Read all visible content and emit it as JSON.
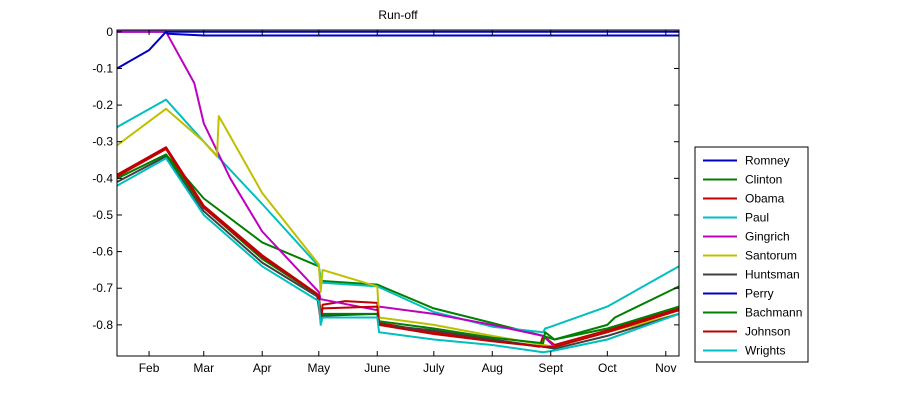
{
  "chart_data": {
    "type": "line",
    "title": "Run-off",
    "xlabel": "",
    "ylabel": "",
    "x_domain": [
      "2012-01-15",
      "2012-11-08"
    ],
    "ylim": [
      -0.885,
      0.005
    ],
    "x_ticks": [
      {
        "date": "2012-02-01",
        "label": "Feb"
      },
      {
        "date": "2012-03-01",
        "label": "Mar"
      },
      {
        "date": "2012-04-01",
        "label": "Apr"
      },
      {
        "date": "2012-05-01",
        "label": "May"
      },
      {
        "date": "2012-06-01",
        "label": "June"
      },
      {
        "date": "2012-07-01",
        "label": "July"
      },
      {
        "date": "2012-08-01",
        "label": "Aug"
      },
      {
        "date": "2012-09-01",
        "label": "Sept"
      },
      {
        "date": "2012-10-01",
        "label": "Oct"
      },
      {
        "date": "2012-11-01",
        "label": "Nov"
      }
    ],
    "y_ticks": [
      {
        "value": 0,
        "label": "0"
      },
      {
        "value": -0.1,
        "label": "-0.1"
      },
      {
        "value": -0.2,
        "label": "-0.2"
      },
      {
        "value": -0.3,
        "label": "-0.3"
      },
      {
        "value": -0.4,
        "label": "-0.4"
      },
      {
        "value": -0.5,
        "label": "-0.5"
      },
      {
        "value": -0.6,
        "label": "-0.6"
      },
      {
        "value": -0.7,
        "label": "-0.7"
      },
      {
        "value": -0.8,
        "label": "-0.8"
      }
    ],
    "grid": false,
    "legend_position": "outside-right",
    "series": [
      {
        "name": "Romney",
        "color": "#0000bf",
        "points": [
          [
            "2012-01-15",
            0
          ],
          [
            "2012-11-08",
            0
          ]
        ]
      },
      {
        "name": "Clinton",
        "color": "#007f00",
        "points": [
          [
            "2012-01-15",
            -0.4
          ],
          [
            "2012-02-10",
            -0.335
          ],
          [
            "2012-03-01",
            -0.455
          ],
          [
            "2012-04-01",
            -0.575
          ],
          [
            "2012-05-01",
            -0.64
          ],
          [
            "2012-05-02",
            -0.68
          ],
          [
            "2012-06-01",
            -0.69
          ],
          [
            "2012-07-01",
            -0.755
          ],
          [
            "2012-08-01",
            -0.795
          ],
          [
            "2012-08-28",
            -0.83
          ],
          [
            "2012-09-03",
            -0.84
          ],
          [
            "2012-10-01",
            -0.8
          ],
          [
            "2012-10-05",
            -0.78
          ],
          [
            "2012-11-08",
            -0.695
          ]
        ]
      },
      {
        "name": "Obama",
        "color": "#bf0000",
        "points": [
          [
            "2012-01-15",
            -0.39
          ],
          [
            "2012-02-10",
            -0.315
          ],
          [
            "2012-03-01",
            -0.475
          ],
          [
            "2012-04-01",
            -0.61
          ],
          [
            "2012-04-30",
            -0.715
          ],
          [
            "2012-05-02",
            -0.79
          ],
          [
            "2012-05-03",
            -0.745
          ],
          [
            "2012-05-15",
            -0.735
          ],
          [
            "2012-06-01",
            -0.74
          ],
          [
            "2012-06-02",
            -0.795
          ],
          [
            "2012-07-01",
            -0.82
          ],
          [
            "2012-08-01",
            -0.84
          ],
          [
            "2012-08-26",
            -0.86
          ],
          [
            "2012-08-28",
            -0.83
          ],
          [
            "2012-09-03",
            -0.855
          ],
          [
            "2012-10-01",
            -0.815
          ],
          [
            "2012-11-08",
            -0.755
          ]
        ]
      },
      {
        "name": "Paul",
        "color": "#00bfbf",
        "points": [
          [
            "2012-01-15",
            -0.26
          ],
          [
            "2012-02-10",
            -0.185
          ],
          [
            "2012-03-01",
            -0.3
          ],
          [
            "2012-04-01",
            -0.47
          ],
          [
            "2012-05-01",
            -0.64
          ],
          [
            "2012-05-02",
            -0.67
          ],
          [
            "2012-05-03",
            -0.685
          ],
          [
            "2012-06-01",
            -0.695
          ],
          [
            "2012-07-01",
            -0.765
          ],
          [
            "2012-08-01",
            -0.805
          ],
          [
            "2012-08-28",
            -0.82
          ],
          [
            "2012-08-29",
            -0.81
          ],
          [
            "2012-09-01",
            -0.805
          ],
          [
            "2012-10-01",
            -0.75
          ],
          [
            "2012-11-08",
            -0.64
          ]
        ]
      },
      {
        "name": "Gingrich",
        "color": "#bf00bf",
        "points": [
          [
            "2012-01-15",
            0
          ],
          [
            "2012-02-10",
            0
          ],
          [
            "2012-02-25",
            -0.14
          ],
          [
            "2012-03-01",
            -0.25
          ],
          [
            "2012-03-15",
            -0.4
          ],
          [
            "2012-04-01",
            -0.545
          ],
          [
            "2012-05-01",
            -0.71
          ],
          [
            "2012-05-02",
            -0.73
          ],
          [
            "2012-06-01",
            -0.76
          ],
          [
            "2012-06-02",
            -0.75
          ],
          [
            "2012-07-01",
            -0.77
          ],
          [
            "2012-08-01",
            -0.8
          ],
          [
            "2012-08-28",
            -0.83
          ],
          [
            "2012-09-03",
            -0.86
          ],
          [
            "2012-10-01",
            -0.82
          ],
          [
            "2012-11-08",
            -0.76
          ]
        ]
      },
      {
        "name": "Santorum",
        "color": "#bfbf00",
        "points": [
          [
            "2012-01-15",
            -0.31
          ],
          [
            "2012-02-10",
            -0.21
          ],
          [
            "2012-03-01",
            -0.3
          ],
          [
            "2012-03-08",
            -0.34
          ],
          [
            "2012-03-09",
            -0.23
          ],
          [
            "2012-04-01",
            -0.44
          ],
          [
            "2012-05-01",
            -0.635
          ],
          [
            "2012-05-02",
            -0.71
          ],
          [
            "2012-05-03",
            -0.65
          ],
          [
            "2012-06-01",
            -0.695
          ],
          [
            "2012-06-02",
            -0.78
          ],
          [
            "2012-07-01",
            -0.8
          ],
          [
            "2012-08-01",
            -0.83
          ],
          [
            "2012-09-03",
            -0.86
          ],
          [
            "2012-10-01",
            -0.82
          ],
          [
            "2012-11-08",
            -0.77
          ]
        ]
      },
      {
        "name": "Huntsman",
        "color": "#404040",
        "points": [
          [
            "2012-01-15",
            -0.41
          ],
          [
            "2012-02-10",
            -0.34
          ],
          [
            "2012-03-01",
            -0.49
          ],
          [
            "2012-04-01",
            -0.63
          ],
          [
            "2012-05-01",
            -0.725
          ],
          [
            "2012-05-02",
            -0.775
          ],
          [
            "2012-06-01",
            -0.77
          ],
          [
            "2012-06-02",
            -0.8
          ],
          [
            "2012-07-01",
            -0.815
          ],
          [
            "2012-08-01",
            -0.84
          ],
          [
            "2012-08-28",
            -0.86
          ],
          [
            "2012-09-03",
            -0.865
          ],
          [
            "2012-10-01",
            -0.83
          ],
          [
            "2012-11-08",
            -0.77
          ]
        ]
      },
      {
        "name": "Perry",
        "color": "#0000bf",
        "points": [
          [
            "2012-01-15",
            -0.1
          ],
          [
            "2012-02-01",
            -0.05
          ],
          [
            "2012-02-10",
            0
          ],
          [
            "2012-02-11",
            -0.005
          ],
          [
            "2012-03-01",
            -0.01
          ],
          [
            "2012-04-01",
            -0.01
          ],
          [
            "2012-05-01",
            -0.01
          ],
          [
            "2012-11-08",
            -0.01
          ]
        ]
      },
      {
        "name": "Bachmann",
        "color": "#007f00",
        "points": [
          [
            "2012-01-15",
            -0.4
          ],
          [
            "2012-02-10",
            -0.335
          ],
          [
            "2012-03-01",
            -0.48
          ],
          [
            "2012-04-01",
            -0.62
          ],
          [
            "2012-05-01",
            -0.72
          ],
          [
            "2012-05-02",
            -0.77
          ],
          [
            "2012-06-01",
            -0.77
          ],
          [
            "2012-06-02",
            -0.79
          ],
          [
            "2012-07-01",
            -0.81
          ],
          [
            "2012-08-01",
            -0.835
          ],
          [
            "2012-08-28",
            -0.85
          ],
          [
            "2012-08-29",
            -0.82
          ],
          [
            "2012-09-03",
            -0.84
          ],
          [
            "2012-10-01",
            -0.81
          ],
          [
            "2012-11-08",
            -0.75
          ]
        ]
      },
      {
        "name": "Johnson",
        "color": "#bf0000",
        "points": [
          [
            "2012-01-15",
            -0.395
          ],
          [
            "2012-02-10",
            -0.32
          ],
          [
            "2012-03-01",
            -0.48
          ],
          [
            "2012-04-01",
            -0.615
          ],
          [
            "2012-05-01",
            -0.72
          ],
          [
            "2012-05-02",
            -0.785
          ],
          [
            "2012-05-03",
            -0.755
          ],
          [
            "2012-06-01",
            -0.75
          ],
          [
            "2012-06-02",
            -0.8
          ],
          [
            "2012-07-01",
            -0.825
          ],
          [
            "2012-08-01",
            -0.845
          ],
          [
            "2012-08-28",
            -0.86
          ],
          [
            "2012-09-03",
            -0.86
          ],
          [
            "2012-10-01",
            -0.82
          ],
          [
            "2012-11-08",
            -0.76
          ]
        ]
      },
      {
        "name": "Wrights",
        "color": "#00bfbf",
        "points": [
          [
            "2012-01-15",
            -0.42
          ],
          [
            "2012-02-10",
            -0.345
          ],
          [
            "2012-03-01",
            -0.5
          ],
          [
            "2012-04-01",
            -0.64
          ],
          [
            "2012-05-01",
            -0.735
          ],
          [
            "2012-05-02",
            -0.8
          ],
          [
            "2012-05-03",
            -0.78
          ],
          [
            "2012-06-01",
            -0.78
          ],
          [
            "2012-06-02",
            -0.82
          ],
          [
            "2012-07-01",
            -0.84
          ],
          [
            "2012-08-01",
            -0.855
          ],
          [
            "2012-08-28",
            -0.875
          ],
          [
            "2012-09-03",
            -0.87
          ],
          [
            "2012-10-01",
            -0.84
          ],
          [
            "2012-11-08",
            -0.77
          ]
        ]
      }
    ]
  }
}
